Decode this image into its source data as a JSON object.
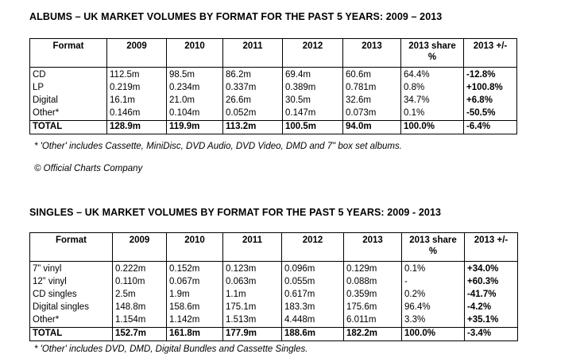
{
  "albums": {
    "title": "ALBUMS – UK MARKET VOLUMES BY FORMAT FOR THE PAST 5 YEARS: 2009 – 2013",
    "headers": [
      "Format",
      "2009",
      "2010",
      "2011",
      "2012",
      "2013",
      "2013 share %",
      "2013 +/-"
    ],
    "rows": [
      [
        "CD",
        "112.5m",
        "98.5m",
        "86.2m",
        "69.4m",
        "60.6m",
        "64.4%",
        "-12.8%"
      ],
      [
        "LP",
        "0.219m",
        "0.234m",
        "0.337m",
        "0.389m",
        "0.781m",
        "0.8%",
        "+100.8%"
      ],
      [
        "Digital",
        "16.1m",
        "21.0m",
        "26.6m",
        "30.5m",
        "32.6m",
        "34.7%",
        "+6.8%"
      ],
      [
        "Other*",
        "0.146m",
        "0.104m",
        "0.052m",
        "0.147m",
        "0.073m",
        "0.1%",
        "-50.5%"
      ]
    ],
    "total": [
      "TOTAL",
      "128.9m",
      "119.9m",
      "113.2m",
      "100.5m",
      "94.0m",
      "100.0%",
      "-6.4%"
    ],
    "footnote": "* 'Other' includes Cassette, MiniDisc, DVD Audio, DVD Video, DMD and 7\" box set albums.",
    "credit": "© Official Charts Company"
  },
  "singles": {
    "title": "SINGLES – UK MARKET VOLUMES BY FORMAT FOR THE PAST 5 YEARS: 2009 - 2013",
    "headers": [
      "Format",
      "2009",
      "2010",
      "2011",
      "2012",
      "2013",
      "2013 share %",
      "2013 +/-"
    ],
    "rows": [
      [
        "7” vinyl",
        "0.222m",
        "0.152m",
        "0.123m",
        "0.096m",
        "0.129m",
        "0.1%",
        "+34.0%"
      ],
      [
        "12” vinyl",
        "0.110m",
        "0.067m",
        "0.063m",
        "0.055m",
        "0.088m",
        "-",
        "+60.3%"
      ],
      [
        "CD singles",
        "2.5m",
        "1.9m",
        "1.1m",
        "0.617m",
        "0.359m",
        "0.2%",
        "-41.7%"
      ],
      [
        "Digital singles",
        "148.8m",
        "158.6m",
        "175.1m",
        "183.3m",
        "175.6m",
        "96.4%",
        "-4.2%"
      ],
      [
        "Other*",
        "1.154m",
        "1.142m",
        "1.513m",
        "4.448m",
        "6.011m",
        "3.3%",
        "+35.1%"
      ]
    ],
    "total": [
      "TOTAL",
      "152.7m",
      "161.8m",
      "177.9m",
      "188.6m",
      "182.2m",
      "100.0%",
      "-3.4%"
    ],
    "footnote": "* 'Other' includes DVD, DMD, Digital Bundles and Cassette Singles."
  }
}
